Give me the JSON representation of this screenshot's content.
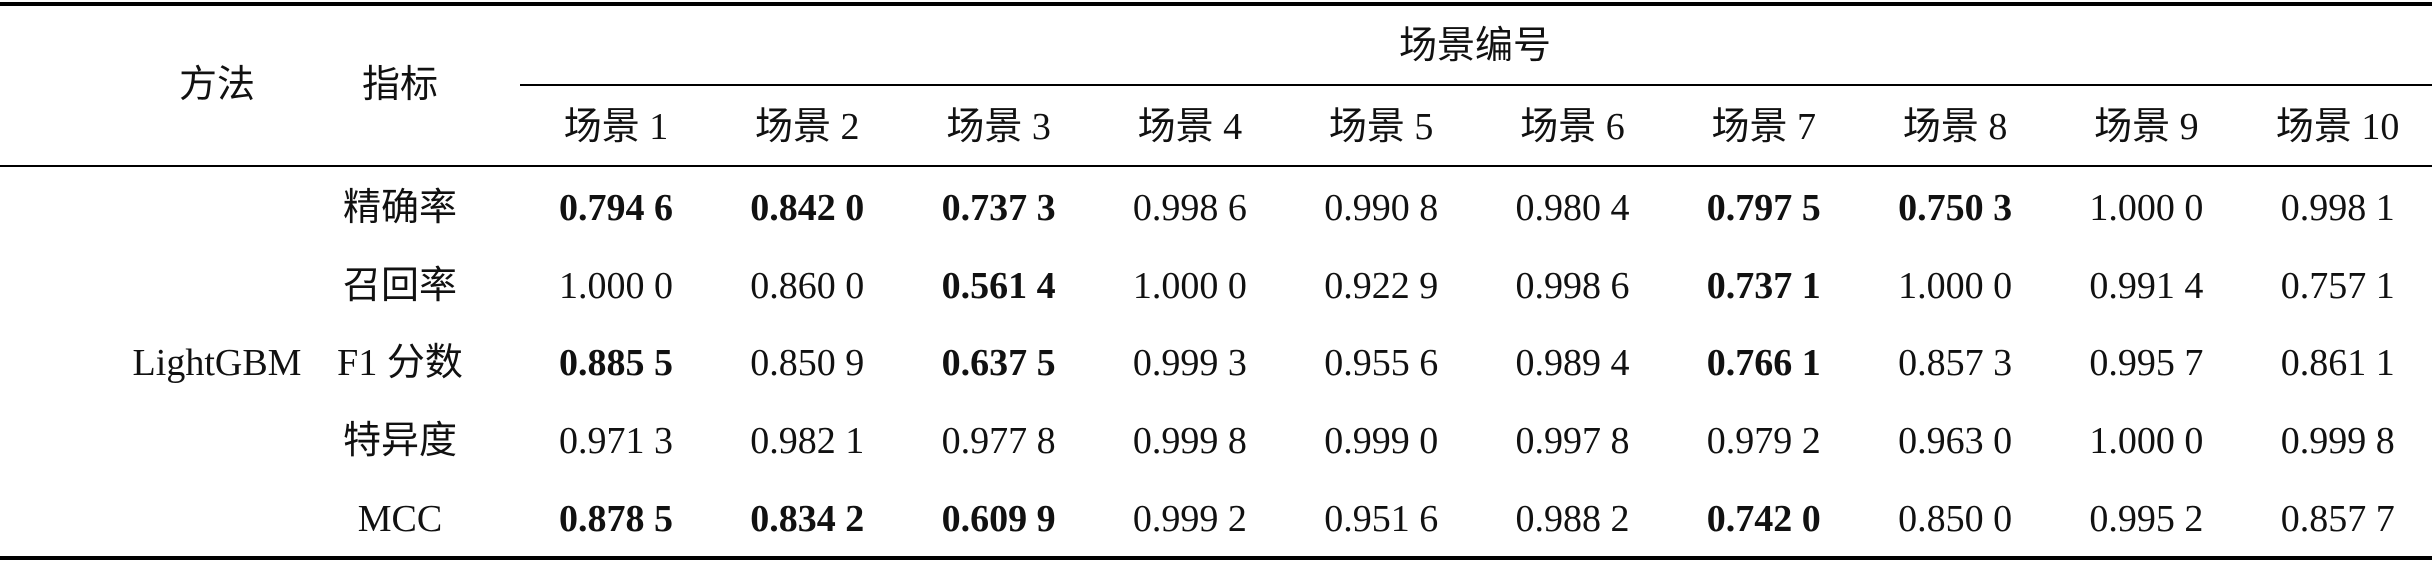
{
  "table": {
    "header": {
      "method": "方法",
      "metric": "指标",
      "group": "场景编号",
      "scenes": [
        "场景 1",
        "场景 2",
        "场景 3",
        "场景 4",
        "场景 5",
        "场景 6",
        "场景 7",
        "场景 8",
        "场景 9",
        "场景 10"
      ]
    },
    "method": "LightGBM",
    "rows": [
      {
        "metric": "精确率",
        "values": [
          "0.794 6",
          "0.842 0",
          "0.737 3",
          "0.998 6",
          "0.990 8",
          "0.980 4",
          "0.797 5",
          "0.750 3",
          "1.000 0",
          "0.998 1"
        ],
        "bold": [
          true,
          true,
          true,
          false,
          false,
          false,
          true,
          true,
          false,
          false
        ]
      },
      {
        "metric": "召回率",
        "values": [
          "1.000 0",
          "0.860 0",
          "0.561 4",
          "1.000 0",
          "0.922 9",
          "0.998 6",
          "0.737 1",
          "1.000 0",
          "0.991 4",
          "0.757 1"
        ],
        "bold": [
          false,
          false,
          true,
          false,
          false,
          false,
          true,
          false,
          false,
          false
        ]
      },
      {
        "metric": "F1 分数",
        "values": [
          "0.885 5",
          "0.850 9",
          "0.637 5",
          "0.999 3",
          "0.955 6",
          "0.989 4",
          "0.766 1",
          "0.857 3",
          "0.995 7",
          "0.861 1"
        ],
        "bold": [
          true,
          false,
          true,
          false,
          false,
          false,
          true,
          false,
          false,
          false
        ]
      },
      {
        "metric": "特异度",
        "values": [
          "0.971 3",
          "0.982 1",
          "0.977 8",
          "0.999 8",
          "0.999 0",
          "0.997 8",
          "0.979 2",
          "0.963 0",
          "1.000 0",
          "0.999 8"
        ],
        "bold": [
          false,
          false,
          false,
          false,
          false,
          false,
          false,
          false,
          false,
          false
        ]
      },
      {
        "metric": "MCC",
        "values": [
          "0.878 5",
          "0.834 2",
          "0.609 9",
          "0.999 2",
          "0.951 6",
          "0.988 2",
          "0.742 0",
          "0.850 0",
          "0.995 2",
          "0.857 7"
        ],
        "bold": [
          true,
          true,
          true,
          false,
          false,
          false,
          true,
          false,
          false,
          false
        ]
      }
    ]
  }
}
